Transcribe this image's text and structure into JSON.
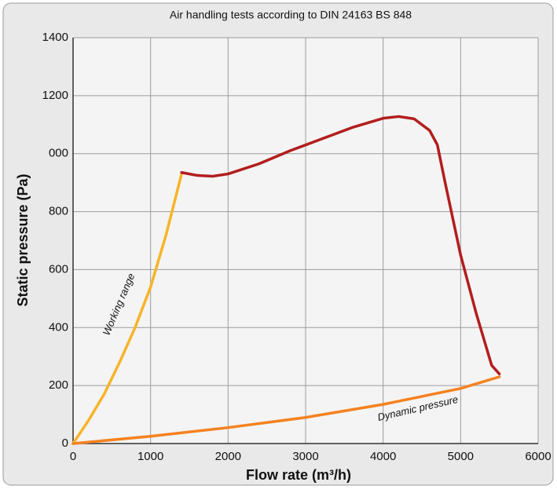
{
  "chart_data": {
    "type": "line",
    "title": "Air handling tests according to DIN 24163 BS 848",
    "x_label": "Flow rate (m³/h)",
    "y_label": "Static pressure (Pa)",
    "xlim": [
      0,
      6000
    ],
    "xticks": [
      0,
      1000,
      2000,
      3000,
      4000,
      5000,
      6000
    ],
    "ylim": [
      0,
      1400
    ],
    "yticks": [
      0,
      200,
      400,
      600,
      800,
      {
        "value": 1000,
        "label": "000"
      },
      1200,
      1400
    ],
    "grid": true,
    "series": [
      {
        "color": "#f7b429",
        "x": [
          0,
          200,
          400,
          600,
          800,
          1000,
          1200,
          1400
        ],
        "values": [
          0,
          80,
          170,
          280,
          400,
          540,
          720,
          930
        ]
      },
      {
        "color": "#b31d1d",
        "x": [
          1400,
          1600,
          1800,
          2000,
          2400,
          2800,
          3200,
          3600,
          4000,
          4200,
          4400,
          4600,
          4700,
          4800,
          5000,
          5200,
          5400,
          5500
        ],
        "values": [
          935,
          925,
          922,
          930,
          965,
          1010,
          1050,
          1090,
          1122,
          1128,
          1120,
          1080,
          1030,
          900,
          650,
          450,
          270,
          240
        ]
      },
      {
        "color": "#f58220",
        "x": [
          0,
          1000,
          2000,
          3000,
          4000,
          5000,
          5500
        ],
        "values": [
          0,
          25,
          55,
          90,
          135,
          190,
          230
        ]
      }
    ],
    "annotations": [
      {
        "text": "Working range"
      },
      {
        "text": "Dynamic pressure"
      }
    ]
  }
}
